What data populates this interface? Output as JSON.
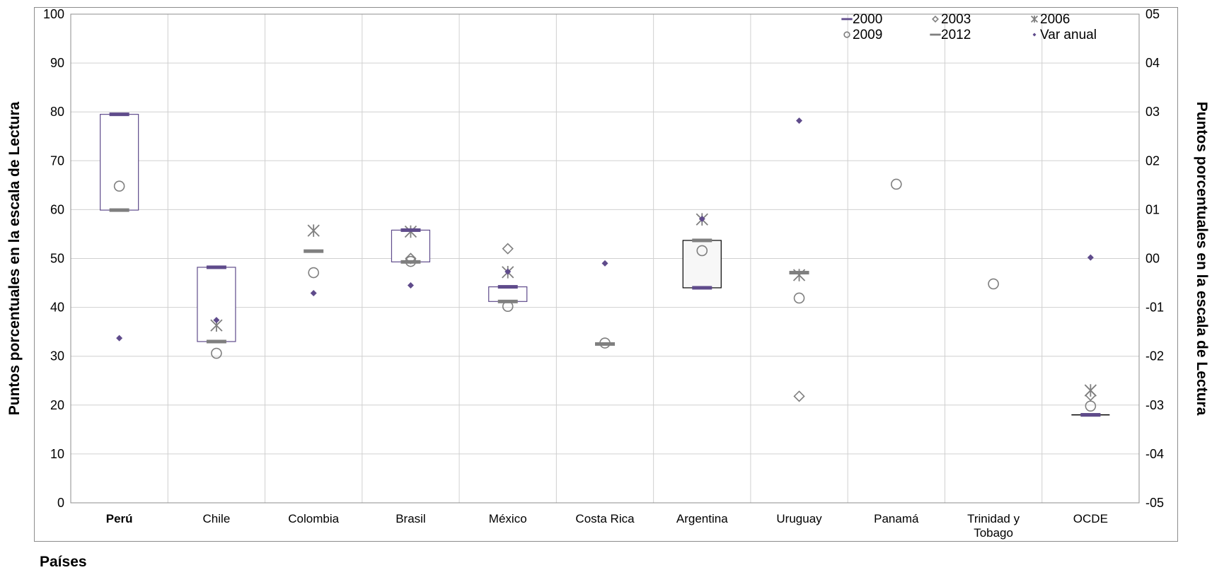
{
  "chart_data": {
    "type": "scatter",
    "ylabel_left": "Puntos porcentuales en la escala de Lectura",
    "ylabel_right": "Puntos porcentuales en la escala de Lectura",
    "xlabel": "Países",
    "ylim_left": [
      0,
      100
    ],
    "ylim_right": [
      -0.05,
      0.05
    ],
    "yticks_left": [
      "0",
      "10",
      "20",
      "30",
      "40",
      "50",
      "60",
      "70",
      "80",
      "90",
      "100"
    ],
    "yticks_right": [
      "-05",
      "-04",
      "-03",
      "-02",
      "-01",
      "00",
      "01",
      "02",
      "03",
      "04",
      "05"
    ],
    "grid": true,
    "legend_position": "top-right",
    "categories": [
      "Perú",
      "Chile",
      "Colombia",
      "Brasil",
      "México",
      "Costa Rica",
      "Argentina",
      "Uruguay",
      "Panamá",
      "Trinidad y Tobago",
      "OCDE"
    ],
    "highlight_category": "Perú",
    "highlight_color": "#c00000",
    "series": [
      {
        "name": "2000",
        "marker": "dash",
        "color": "#5f4b8b",
        "axis": "left",
        "values": [
          79.5,
          48.2,
          null,
          55.8,
          44.2,
          null,
          44.0,
          null,
          null,
          null,
          18.0
        ]
      },
      {
        "name": "2003",
        "marker": "diamond-open",
        "color": "#7f7f7f",
        "axis": "left",
        "values": [
          null,
          null,
          null,
          50.0,
          52.0,
          null,
          null,
          21.8,
          null,
          null,
          22.0
        ]
      },
      {
        "name": "2006",
        "marker": "asterisk",
        "color": "#7f7f7f",
        "axis": "left",
        "values": [
          null,
          36.3,
          55.7,
          55.5,
          47.2,
          null,
          58.0,
          46.6,
          null,
          null,
          23.0
        ]
      },
      {
        "name": "2009",
        "marker": "circle-open",
        "color": "#7f7f7f",
        "axis": "left",
        "values": [
          64.8,
          30.6,
          47.1,
          49.4,
          40.2,
          32.7,
          51.6,
          41.9,
          65.2,
          44.8,
          19.8
        ]
      },
      {
        "name": "2012",
        "marker": "dash",
        "color": "#7f7f7f",
        "axis": "left",
        "values": [
          59.9,
          33.0,
          51.5,
          49.3,
          41.2,
          32.5,
          53.7,
          47.1,
          null,
          null,
          18.0
        ]
      },
      {
        "name": "Var anual",
        "marker": "diamond-filled",
        "color": "#5f4b8b",
        "axis": "right",
        "values": [
          -0.0163,
          -0.0126,
          -0.0071,
          -0.0055,
          -0.0027,
          -0.001,
          0.0081,
          0.0282,
          null,
          null,
          0.0002
        ]
      }
    ],
    "boxes": [
      {
        "category": "Perú",
        "low": 59.9,
        "high": 79.5,
        "edge_color": "#5f4b8b",
        "fill": "#ffffff"
      },
      {
        "category": "Chile",
        "low": 33.0,
        "high": 48.2,
        "edge_color": "#5f4b8b",
        "fill": "#ffffff"
      },
      {
        "category": "Brasil",
        "low": 49.3,
        "high": 55.8,
        "edge_color": "#5f4b8b",
        "fill": "#ffffff"
      },
      {
        "category": "México",
        "low": 41.2,
        "high": 44.2,
        "edge_color": "#5f4b8b",
        "fill": "#ffffff"
      },
      {
        "category": "Argentina",
        "low": 44.0,
        "high": 53.7,
        "edge_color": "#000000",
        "fill": "#f7f7f7"
      },
      {
        "category": "OCDE",
        "low": 18.0,
        "high": 18.0,
        "edge_color": "#000000",
        "fill": "#ffffff"
      }
    ]
  }
}
